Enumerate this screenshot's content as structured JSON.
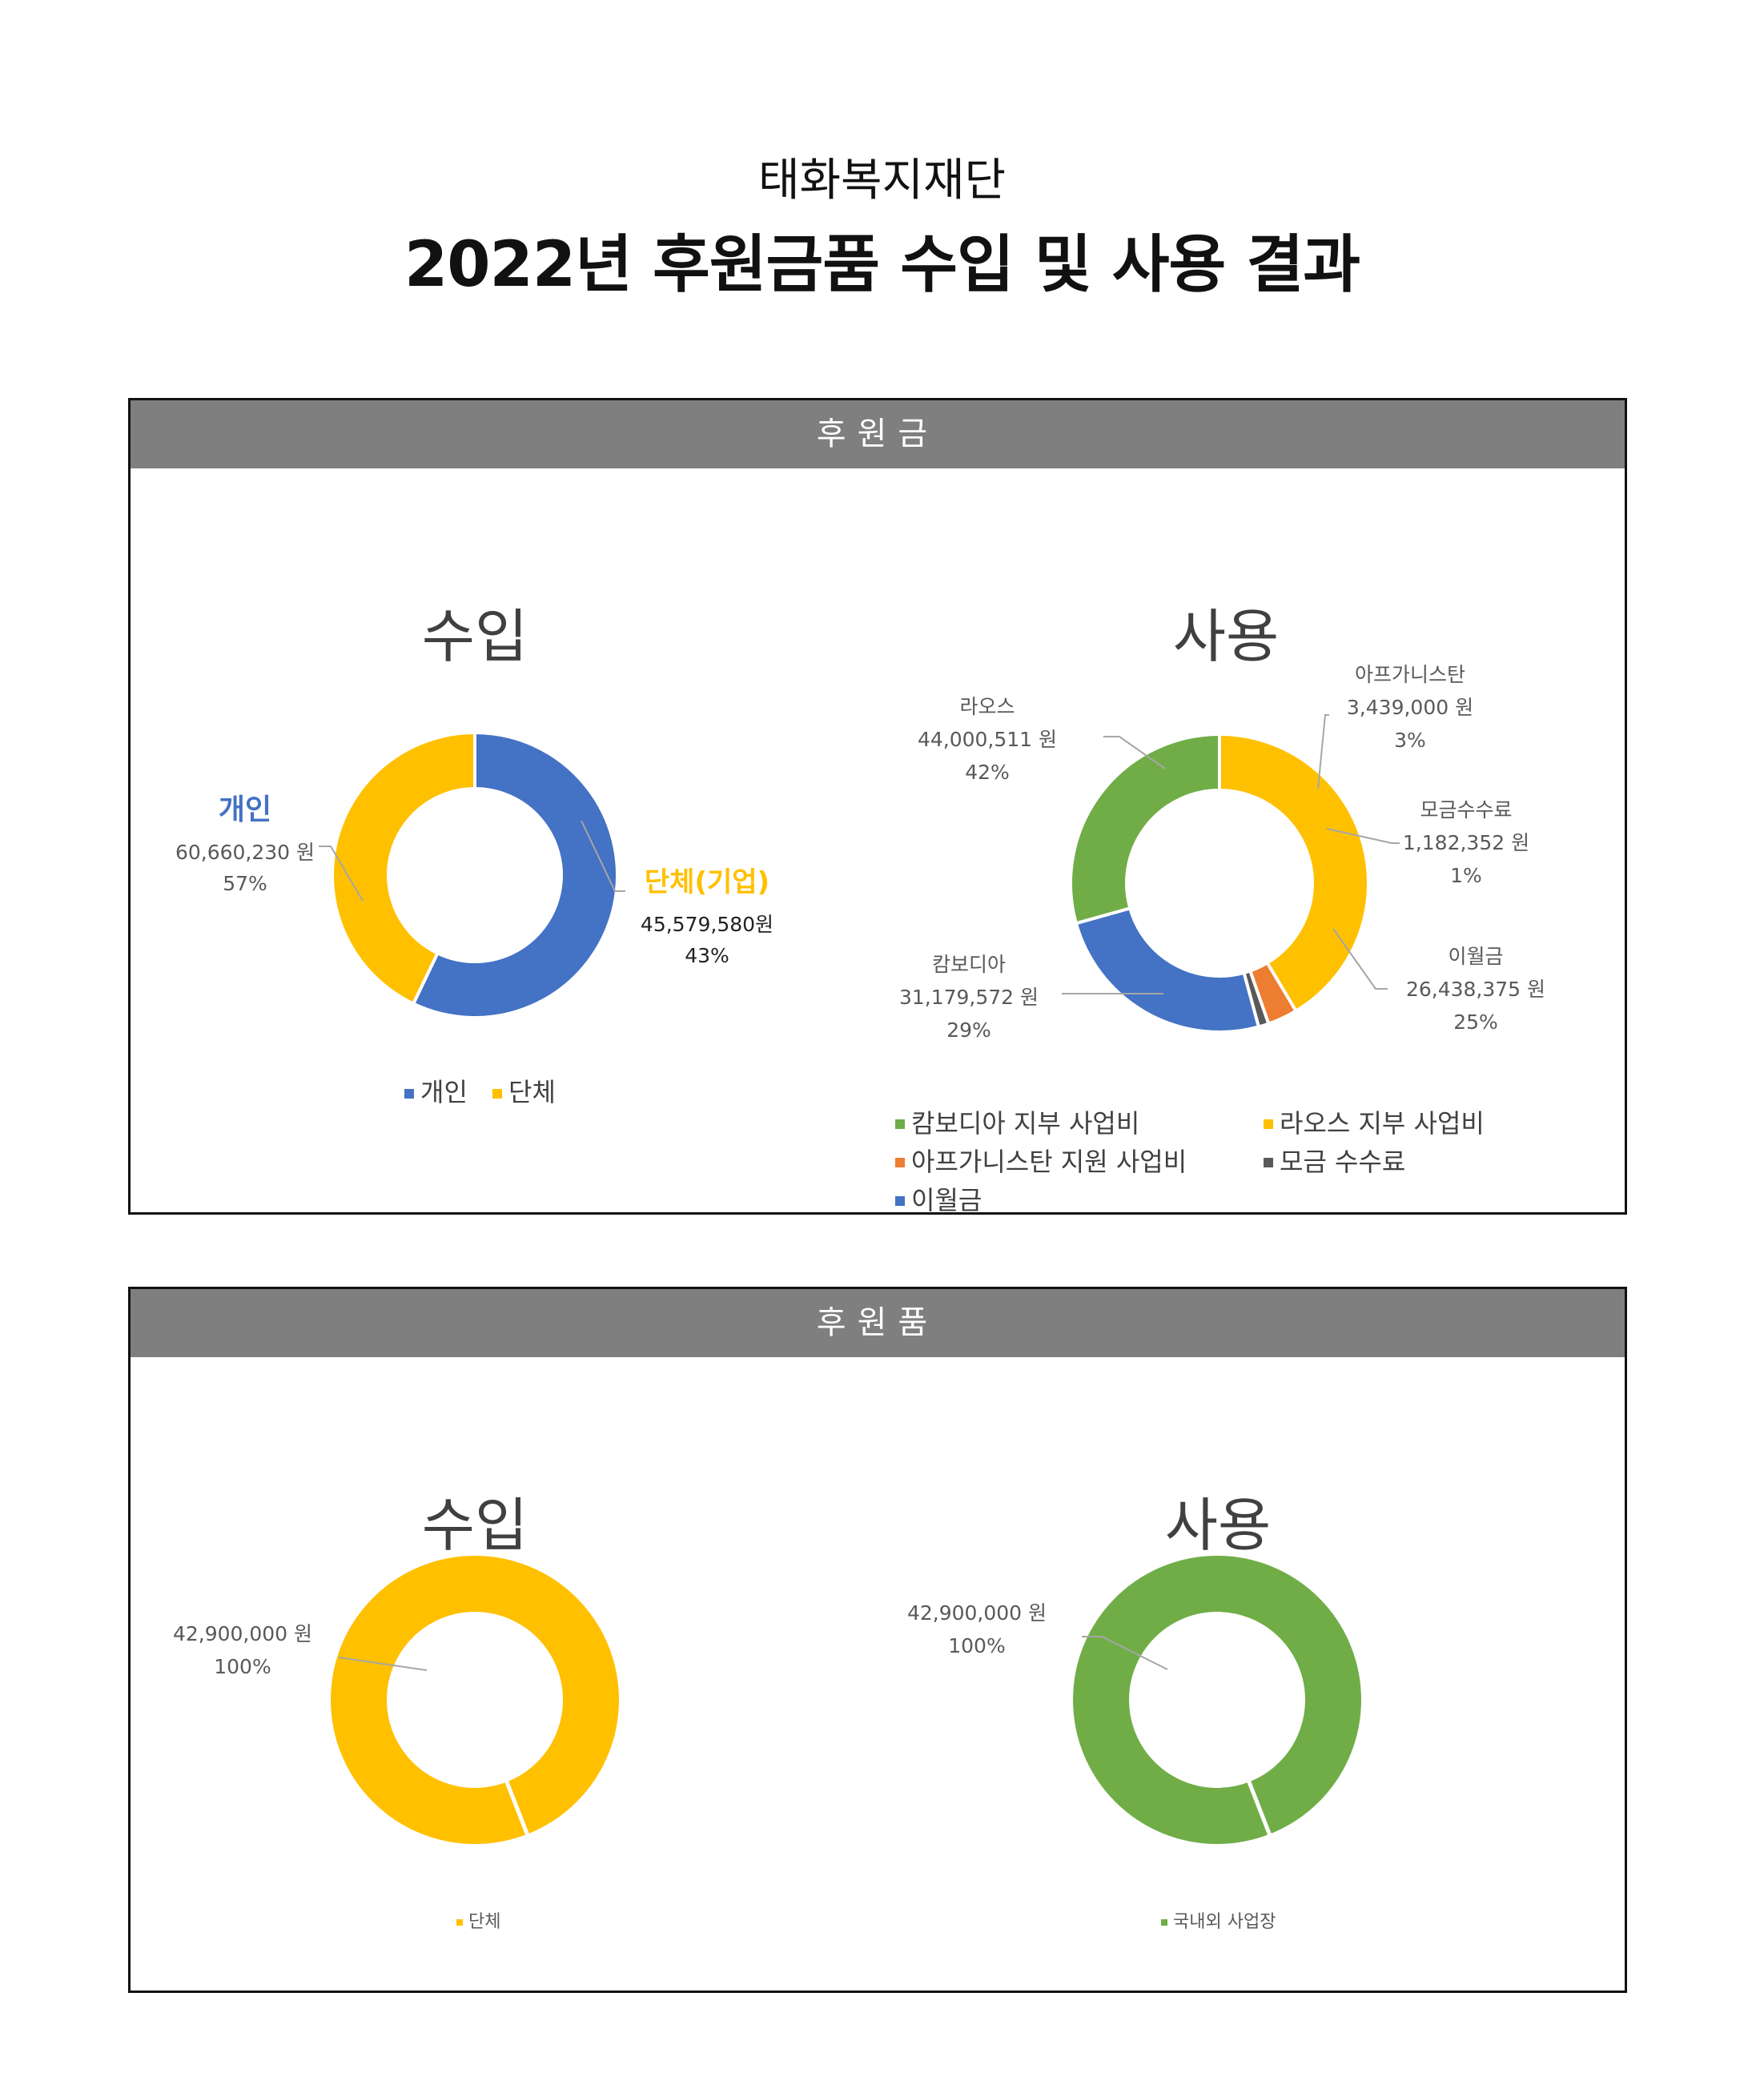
{
  "header": {
    "organization": "태화복지재단",
    "title": "2022년 후원금품 수입 및 사용 결과"
  },
  "colors": {
    "blue": "#4472C4",
    "yellow": "#FFC000",
    "green": "#70AD47",
    "orange": "#ED7D31",
    "dark": "#595959",
    "header_bg": "#7F7F7F"
  },
  "sections": [
    {
      "heading": "후원금",
      "income_title": "수입",
      "usage_title": "사용"
    },
    {
      "heading": "후원품",
      "income_title": "수입",
      "usage_title": "사용"
    }
  ],
  "chart_data": [
    {
      "type": "donut",
      "section": "후원금",
      "title": "수입",
      "slices": [
        {
          "name": "개인",
          "label_title": "개인",
          "value": 60660230,
          "value_label": "60,660,230 원",
          "percent": "57%",
          "color": "#4472C4"
        },
        {
          "name": "단체",
          "label_title": "단체(기업)",
          "value": 45579580,
          "value_label": "45,579,580원",
          "percent": "43%",
          "color": "#FFC000"
        }
      ],
      "legend": [
        "개인",
        "단체"
      ]
    },
    {
      "type": "donut",
      "section": "후원금",
      "title": "사용",
      "slices": [
        {
          "name": "라오스 지부 사업비",
          "label_title": "라오스",
          "value": 44000511,
          "value_label": "44,000,511 원",
          "percent": "42%",
          "color": "#FFC000"
        },
        {
          "name": "아프가니스탄 지원 사업비",
          "label_title": "아프가니스탄",
          "value": 3439000,
          "value_label": "3,439,000 원",
          "percent": "3%",
          "color": "#ED7D31"
        },
        {
          "name": "모금 수수료",
          "label_title": "모금수수료",
          "value": 1182352,
          "value_label": "1,182,352 원",
          "percent": "1%",
          "color": "#595959"
        },
        {
          "name": "이월금",
          "label_title": "이월금",
          "value": 26438375,
          "value_label": "26,438,375 원",
          "percent": "25%",
          "color": "#4472C4"
        },
        {
          "name": "캄보디아 지부 사업비",
          "label_title": "캄보디아",
          "value": 31179572,
          "value_label": "31,179,572 원",
          "percent": "29%",
          "color": "#70AD47"
        }
      ],
      "legend": [
        "캄보디아 지부 사업비",
        "라오스 지부 사업비",
        "아프가니스탄 지원 사업비",
        "모금 수수료",
        "이월금"
      ]
    },
    {
      "type": "donut",
      "section": "후원품",
      "title": "수입",
      "slices": [
        {
          "name": "단체",
          "value": 42900000,
          "value_label": "42,900,000 원",
          "percent": "100%",
          "color": "#FFC000"
        }
      ],
      "legend": [
        "단체"
      ]
    },
    {
      "type": "donut",
      "section": "후원품",
      "title": "사용",
      "slices": [
        {
          "name": "국내외 사업장",
          "value": 42900000,
          "value_label": "42,900,000 원",
          "percent": "100%",
          "color": "#70AD47"
        }
      ],
      "legend": [
        "국내외 사업장"
      ]
    }
  ]
}
